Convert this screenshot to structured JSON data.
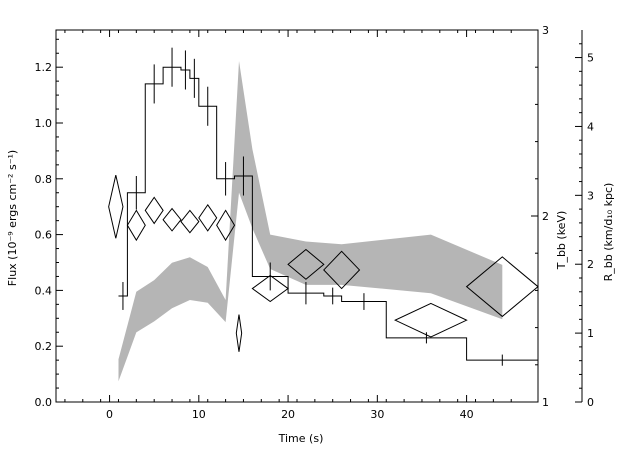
{
  "chart_data": {
    "type": "line",
    "xlabel": "Time (s)",
    "ylabel_left": "Flux (10⁻⁹ ergs cm⁻² s⁻¹)",
    "ylabel_right_1": "T_bb (keV)",
    "ylabel_right_2": "R_bb (km/d₁₀ kpc)",
    "xlim": [
      -6,
      48
    ],
    "ylim_left": [
      0,
      1.3333
    ],
    "ylim_right_1": [
      1,
      3
    ],
    "ylim_right_2": [
      0,
      5.4
    ],
    "x_ticks": [
      0,
      10,
      20,
      30,
      40
    ],
    "x_tick_labels": [
      "0",
      "10",
      "20",
      "30",
      "40"
    ],
    "y_ticks_left": [
      0.0,
      0.2,
      0.4,
      0.6,
      0.8,
      1.0,
      1.2
    ],
    "y_tick_labels_left": [
      "0.0",
      "0.2",
      "0.4",
      "0.6",
      "0.8",
      "1.0",
      "1.2"
    ],
    "y_ticks_right_1": [
      1,
      2,
      3
    ],
    "y_tick_labels_right_1": [
      "1",
      "2",
      "3"
    ],
    "y_ticks_right_2": [
      0,
      1,
      2,
      3,
      4,
      5
    ],
    "y_tick_labels_right_2": [
      "0",
      "1",
      "2",
      "3",
      "4",
      "5"
    ],
    "series": [
      {
        "style": "histogram",
        "bins": [
          {
            "x0": 1,
            "x1": 2,
            "y": 0.38,
            "err": 0.05
          },
          {
            "x0": 2,
            "x1": 4,
            "y": 0.75,
            "err": 0.06
          },
          {
            "x0": 4,
            "x1": 6,
            "y": 1.14,
            "err": 0.07
          },
          {
            "x0": 6,
            "x1": 8,
            "y": 1.2,
            "err": 0.07
          },
          {
            "x0": 8,
            "x1": 9,
            "y": 1.19,
            "err": 0.07
          },
          {
            "x0": 9,
            "x1": 10,
            "y": 1.16,
            "err": 0.07
          },
          {
            "x0": 10,
            "x1": 12,
            "y": 1.06,
            "err": 0.07
          },
          {
            "x0": 12,
            "x1": 14,
            "y": 0.8,
            "err": 0.06
          },
          {
            "x0": 14,
            "x1": 16,
            "y": 0.81,
            "err": 0.07
          },
          {
            "x0": 16,
            "x1": 20,
            "y": 0.45,
            "err": 0.05
          },
          {
            "x0": 20,
            "x1": 24,
            "y": 0.39,
            "err": 0.04
          },
          {
            "x0": 24,
            "x1": 26,
            "y": 0.38,
            "err": 0.03
          },
          {
            "x0": 26,
            "x1": 31,
            "y": 0.36,
            "err": 0.03
          },
          {
            "x0": 31,
            "x1": 40,
            "y": 0.23,
            "err": 0.02
          },
          {
            "x0": 40,
            "x1": 48,
            "y": 0.15,
            "err": 0.02
          }
        ]
      },
      {
        "style": "diamonds",
        "axis": "T_bb",
        "points": [
          {
            "x": 0.7,
            "y": 2.05,
            "dx": 0.8,
            "dy": 0.17
          },
          {
            "x": 3.0,
            "y": 1.95,
            "dx": 1.0,
            "dy": 0.08
          },
          {
            "x": 5.0,
            "y": 2.03,
            "dx": 1.0,
            "dy": 0.07
          },
          {
            "x": 7.0,
            "y": 1.98,
            "dx": 1.0,
            "dy": 0.06
          },
          {
            "x": 9.0,
            "y": 1.97,
            "dx": 1.0,
            "dy": 0.06
          },
          {
            "x": 11.0,
            "y": 1.99,
            "dx": 1.0,
            "dy": 0.07
          },
          {
            "x": 13.0,
            "y": 1.95,
            "dx": 1.0,
            "dy": 0.08
          },
          {
            "x": 14.5,
            "y": 1.37,
            "dx": 0.3,
            "dy": 0.1
          },
          {
            "x": 18.0,
            "y": 1.61,
            "dx": 2.0,
            "dy": 0.07
          },
          {
            "x": 22.0,
            "y": 1.74,
            "dx": 2.0,
            "dy": 0.08
          },
          {
            "x": 26.0,
            "y": 1.71,
            "dx": 2.0,
            "dy": 0.1
          },
          {
            "x": 36.0,
            "y": 1.44,
            "dx": 4.0,
            "dy": 0.09
          },
          {
            "x": 44.0,
            "y": 1.62,
            "dx": 4.0,
            "dy": 0.16
          }
        ]
      },
      {
        "style": "band",
        "axis": "R_bb",
        "x": [
          1,
          3,
          5,
          7,
          9,
          11,
          13,
          14.5,
          16,
          18,
          22,
          26,
          36,
          44
        ],
        "lower": [
          0.3,
          1.01,
          1.17,
          1.36,
          1.48,
          1.44,
          1.16,
          3.04,
          2.52,
          1.93,
          1.7,
          1.7,
          1.58,
          1.2
        ],
        "upper": [
          0.62,
          1.6,
          1.77,
          2.02,
          2.1,
          1.96,
          1.48,
          4.95,
          3.67,
          2.43,
          2.33,
          2.29,
          2.43,
          1.99
        ]
      }
    ]
  }
}
